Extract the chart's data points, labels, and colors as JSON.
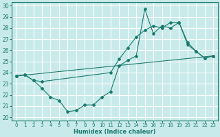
{
  "xlabel": "Humidex (Indice chaleur)",
  "bg_color": "#c8eaea",
  "grid_color": "#ffffff",
  "line_color": "#1a7a6e",
  "xlim": [
    -0.5,
    23.5
  ],
  "ylim": [
    19.7,
    30.3
  ],
  "yticks": [
    20,
    21,
    22,
    23,
    24,
    25,
    26,
    27,
    28,
    29,
    30
  ],
  "xticks": [
    0,
    1,
    2,
    3,
    4,
    5,
    6,
    7,
    8,
    9,
    10,
    11,
    12,
    13,
    14,
    15,
    16,
    17,
    18,
    19,
    20,
    21,
    22,
    23
  ],
  "line1_x": [
    0,
    1,
    2,
    3,
    4,
    5,
    6,
    7,
    8,
    9,
    10,
    11,
    12,
    13,
    14,
    15,
    16,
    17,
    18,
    19,
    20,
    21,
    22,
    23
  ],
  "line1_y": [
    23.7,
    23.8,
    23.3,
    22.6,
    21.8,
    21.5,
    20.5,
    20.6,
    21.1,
    21.1,
    21.8,
    22.3,
    24.6,
    25.1,
    25.5,
    29.7,
    27.5,
    28.2,
    28.0,
    28.5,
    26.7,
    25.9,
    25.3,
    25.5
  ],
  "line2_x": [
    0,
    1,
    2,
    3,
    11,
    12,
    13,
    14,
    15,
    16,
    17,
    18,
    19,
    20,
    21,
    22,
    23
  ],
  "line2_y": [
    23.7,
    23.8,
    23.3,
    23.2,
    24.0,
    25.2,
    26.2,
    27.2,
    27.8,
    28.2,
    28.0,
    28.5,
    28.5,
    26.5,
    25.9,
    25.3,
    25.5
  ],
  "line3_x": [
    0,
    23
  ],
  "line3_y": [
    23.7,
    25.5
  ]
}
